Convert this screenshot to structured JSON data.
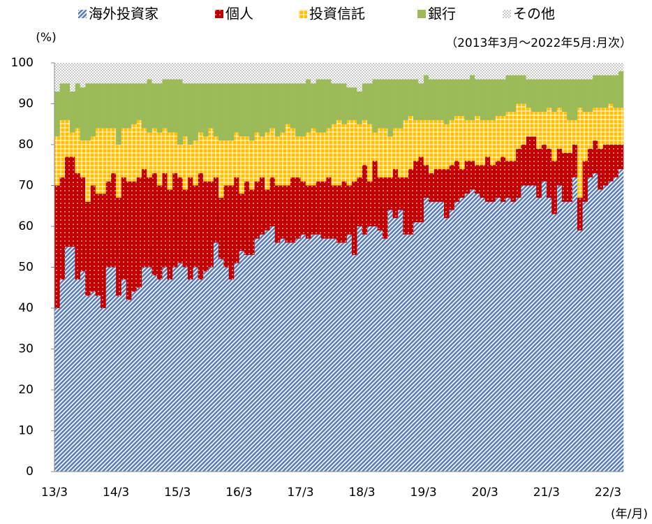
{
  "chart_data": {
    "type": "bar",
    "stacked": true,
    "y_label": "(%)",
    "x_label": "(年/月)",
    "annotation": "（2013年3月～2022年5月:月次）",
    "ylim": [
      0,
      100
    ],
    "yticks": [
      0,
      10,
      20,
      30,
      40,
      50,
      60,
      70,
      80,
      90,
      100
    ],
    "categories": [
      "13/3",
      null,
      null,
      null,
      null,
      null,
      null,
      null,
      null,
      null,
      null,
      null,
      "14/3",
      null,
      null,
      null,
      null,
      null,
      null,
      null,
      null,
      null,
      null,
      null,
      "15/3",
      null,
      null,
      null,
      null,
      null,
      null,
      null,
      null,
      null,
      null,
      null,
      "16/3",
      null,
      null,
      null,
      null,
      null,
      null,
      null,
      null,
      null,
      null,
      null,
      "17/3",
      null,
      null,
      null,
      null,
      null,
      null,
      null,
      null,
      null,
      null,
      null,
      "18/3",
      null,
      null,
      null,
      null,
      null,
      null,
      null,
      null,
      null,
      null,
      null,
      "19/3",
      null,
      null,
      null,
      null,
      null,
      null,
      null,
      null,
      null,
      null,
      null,
      "20/3",
      null,
      null,
      null,
      null,
      null,
      null,
      null,
      null,
      null,
      null,
      null,
      "21/3",
      null,
      null,
      null,
      null,
      null,
      null,
      null,
      null,
      null,
      null,
      null,
      "22/3",
      null,
      null
    ],
    "series": [
      {
        "name": "海外投資家",
        "color": "#5b7fc4",
        "values": [
          40,
          47,
          55,
          55,
          47,
          49,
          43,
          44,
          43,
          40,
          50,
          50,
          43,
          47,
          42,
          44,
          45,
          50,
          50,
          48,
          47,
          50,
          47,
          50,
          51,
          50,
          47,
          50,
          47,
          49,
          50,
          56,
          52,
          50,
          47,
          51,
          54,
          53,
          53,
          57,
          58,
          59,
          60,
          56,
          57,
          56,
          56,
          57,
          58,
          57,
          58,
          58,
          57,
          57,
          57,
          56,
          56,
          58,
          53,
          60,
          58,
          60,
          60,
          59,
          57,
          64,
          62,
          64,
          58,
          58,
          61,
          61,
          67,
          66,
          66,
          66,
          62,
          64,
          66,
          67,
          68,
          69,
          68,
          67,
          66,
          66,
          67,
          66,
          67,
          66,
          67,
          70,
          70,
          70,
          67,
          71,
          67,
          63,
          70,
          66,
          66,
          72,
          59,
          66,
          72,
          73,
          69,
          70,
          71,
          72,
          74
        ]
      },
      {
        "name": "個人",
        "color": "#c00000",
        "values": [
          30,
          25,
          22,
          22,
          26,
          23,
          23,
          26,
          25,
          28,
          21,
          23,
          24,
          25,
          29,
          27,
          27,
          24,
          22,
          25,
          23,
          23,
          22,
          23,
          21,
          19,
          25,
          20,
          26,
          22,
          21,
          16,
          15,
          20,
          23,
          21,
          14,
          18,
          16,
          14,
          14,
          10,
          12,
          14,
          13,
          14,
          16,
          15,
          13,
          13,
          12,
          13,
          14,
          15,
          13,
          14,
          15,
          12,
          18,
          12,
          17,
          11,
          16,
          13,
          15,
          8,
          12,
          8,
          14,
          16,
          15,
          16,
          8,
          7,
          8,
          8,
          12,
          11,
          10,
          7,
          8,
          7,
          7,
          8,
          11,
          9,
          9,
          11,
          9,
          10,
          12,
          10,
          12,
          12,
          12,
          9,
          12,
          13,
          9,
          12,
          12,
          8,
          8,
          10,
          7,
          8,
          10,
          10,
          9,
          8,
          6
        ]
      },
      {
        "name": "投資信託",
        "color": "#ffc000",
        "values": [
          12,
          14,
          9,
          6,
          11,
          9,
          15,
          12,
          16,
          16,
          13,
          11,
          13,
          12,
          13,
          14,
          14,
          10,
          11,
          11,
          13,
          11,
          14,
          10,
          8,
          13,
          8,
          11,
          10,
          11,
          13,
          10,
          14,
          11,
          11,
          11,
          14,
          11,
          12,
          12,
          10,
          14,
          12,
          12,
          13,
          15,
          12,
          10,
          11,
          13,
          14,
          12,
          12,
          12,
          15,
          16,
          14,
          16,
          15,
          13,
          11,
          14,
          7,
          12,
          12,
          10,
          10,
          12,
          14,
          13,
          10,
          9,
          11,
          13,
          12,
          12,
          11,
          11,
          11,
          13,
          10,
          10,
          12,
          11,
          9,
          11,
          11,
          10,
          12,
          12,
          11,
          10,
          7,
          6,
          9,
          8,
          10,
          12,
          10,
          10,
          8,
          6,
          22,
          12,
          9,
          8,
          10,
          9,
          10,
          9,
          9
        ]
      },
      {
        "name": "銀行",
        "color": "#9bbb59",
        "values": [
          11,
          9,
          9,
          10,
          11,
          13,
          14,
          13,
          11,
          11,
          11,
          11,
          15,
          11,
          11,
          10,
          9,
          11,
          13,
          11,
          12,
          12,
          13,
          13,
          16,
          13,
          15,
          14,
          12,
          13,
          11,
          13,
          14,
          14,
          14,
          12,
          13,
          13,
          14,
          12,
          13,
          12,
          11,
          13,
          12,
          10,
          11,
          13,
          13,
          13,
          11,
          13,
          13,
          12,
          10,
          9,
          10,
          8,
          8,
          8,
          9,
          10,
          13,
          12,
          12,
          14,
          12,
          12,
          10,
          9,
          10,
          9,
          11,
          10,
          10,
          10,
          11,
          10,
          9,
          9,
          10,
          11,
          9,
          10,
          10,
          10,
          9,
          9,
          9,
          9,
          7,
          7,
          7,
          8,
          8,
          8,
          7,
          8,
          7,
          8,
          10,
          10,
          7,
          8,
          8,
          8,
          8,
          8,
          7,
          8,
          9
        ]
      },
      {
        "name": "その他",
        "color": "#c8c8c8",
        "values": [
          7,
          5,
          5,
          7,
          5,
          6,
          5,
          5,
          5,
          5,
          5,
          5,
          5,
          5,
          5,
          5,
          5,
          5,
          4,
          5,
          5,
          4,
          4,
          4,
          4,
          5,
          5,
          5,
          5,
          5,
          5,
          5,
          5,
          5,
          5,
          5,
          5,
          5,
          5,
          5,
          5,
          5,
          5,
          5,
          5,
          5,
          5,
          5,
          5,
          4,
          5,
          4,
          4,
          4,
          5,
          5,
          5,
          6,
          6,
          7,
          5,
          5,
          4,
          4,
          4,
          4,
          4,
          4,
          4,
          4,
          4,
          5,
          3,
          4,
          4,
          4,
          4,
          4,
          4,
          4,
          4,
          3,
          4,
          4,
          4,
          4,
          4,
          4,
          3,
          3,
          3,
          3,
          4,
          4,
          4,
          4,
          4,
          4,
          4,
          4,
          4,
          4,
          4,
          4,
          4,
          3,
          3,
          3,
          3,
          3,
          2
        ]
      }
    ]
  }
}
